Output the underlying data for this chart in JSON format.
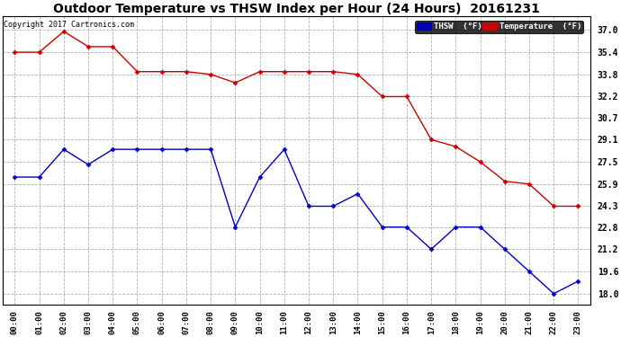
{
  "title": "Outdoor Temperature vs THSW Index per Hour (24 Hours)  20161231",
  "copyright": "Copyright 2017 Cartronics.com",
  "x_labels": [
    "00:00",
    "01:00",
    "02:00",
    "03:00",
    "04:00",
    "05:00",
    "06:00",
    "07:00",
    "08:00",
    "09:00",
    "10:00",
    "11:00",
    "12:00",
    "13:00",
    "14:00",
    "15:00",
    "16:00",
    "17:00",
    "18:00",
    "19:00",
    "20:00",
    "21:00",
    "22:00",
    "23:00"
  ],
  "temperature": [
    35.4,
    35.4,
    36.9,
    35.8,
    35.8,
    34.0,
    34.0,
    34.0,
    33.8,
    33.2,
    34.0,
    34.0,
    34.0,
    34.0,
    33.8,
    32.2,
    32.2,
    29.1,
    28.6,
    27.5,
    26.1,
    25.9,
    24.3,
    24.3
  ],
  "thsw": [
    26.4,
    26.4,
    28.4,
    27.3,
    28.4,
    28.4,
    28.4,
    28.4,
    28.4,
    22.8,
    26.4,
    28.4,
    24.3,
    24.3,
    25.2,
    22.8,
    22.8,
    21.2,
    22.8,
    22.8,
    21.2,
    19.6,
    18.0,
    18.9
  ],
  "temp_color": "#cc0000",
  "thsw_color": "#0000cc",
  "background_color": "#ffffff",
  "grid_color": "#b0b0b0",
  "ylim_min": 17.2,
  "ylim_max": 38.0,
  "yticks": [
    37.0,
    35.4,
    33.8,
    32.2,
    30.7,
    29.1,
    27.5,
    25.9,
    24.3,
    22.8,
    21.2,
    19.6,
    18.0
  ],
  "legend_thsw_bg": "#0000bb",
  "legend_temp_bg": "#cc0000",
  "legend_thsw_label": "THSW  (°F)",
  "legend_temp_label": "Temperature  (°F)"
}
